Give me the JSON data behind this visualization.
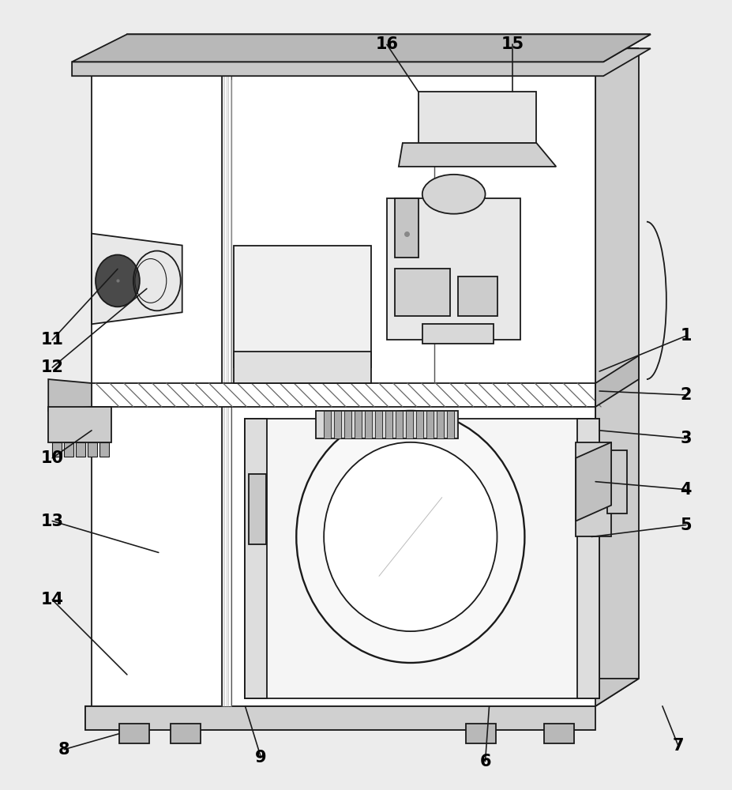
{
  "bg_color": "#ececec",
  "line_color": "#1a1a1a",
  "lw": 1.3,
  "figsize": [
    9.28,
    10.0
  ],
  "dpi": 100
}
